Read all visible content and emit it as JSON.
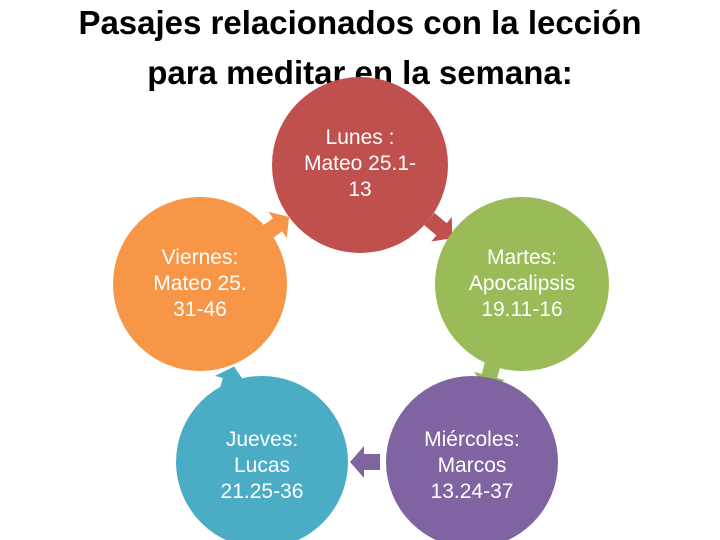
{
  "header": {
    "title_lines": [
      "Pasajes relacionados con la lección",
      "para meditar en la semana:"
    ]
  },
  "nodes": [
    {
      "lines": [
        "Lunes :",
        "Mateo 25.1-",
        "13"
      ]
    },
    {
      "lines": [
        "Martes:",
        "Apocalipsis",
        "19.11-16"
      ]
    },
    {
      "lines": [
        "Miércoles:",
        "Marcos",
        "13.24-37"
      ]
    },
    {
      "lines": [
        "Jueves:",
        "Lucas",
        "21.25-36"
      ]
    },
    {
      "lines": [
        "Viernes:",
        "Mateo 25.",
        "31-46"
      ]
    }
  ]
}
